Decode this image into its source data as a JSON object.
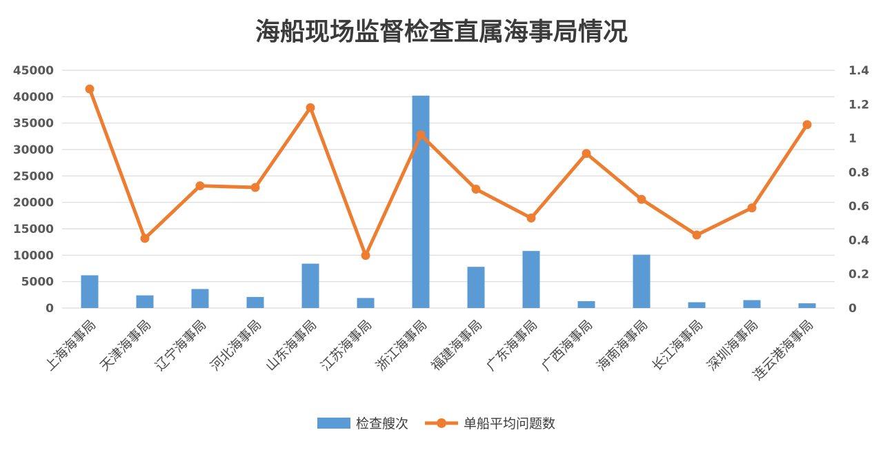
{
  "chart_data": {
    "type": "bar",
    "title": "海船现场监督检查直属海事局情况",
    "categories": [
      "上海海事局",
      "天津海事局",
      "辽宁海事局",
      "河北海事局",
      "山东海事局",
      "江苏海事局",
      "浙江海事局",
      "福建海事局",
      "广东海事局",
      "广西海事局",
      "海南海事局",
      "长江海事局",
      "深圳海事局",
      "连云港海事局"
    ],
    "series": [
      {
        "name": "检查艘次",
        "type": "bar",
        "axis": "left",
        "color": "#5b9bd5",
        "values": [
          6200,
          2400,
          3600,
          2100,
          8400,
          1900,
          40200,
          7800,
          10800,
          1300,
          10100,
          1100,
          1500,
          900
        ]
      },
      {
        "name": "单船平均问题数",
        "type": "line",
        "axis": "right",
        "color": "#ed7d31",
        "values": [
          1.29,
          0.41,
          0.72,
          0.71,
          1.18,
          0.31,
          1.02,
          0.7,
          0.53,
          0.91,
          0.64,
          0.43,
          0.59,
          1.08
        ]
      }
    ],
    "y_left": {
      "min": 0,
      "max": 45000,
      "ticks": [
        "0",
        "5000",
        "10000",
        "15000",
        "20000",
        "25000",
        "30000",
        "35000",
        "40000",
        "45000"
      ]
    },
    "y_right": {
      "min": 0,
      "max": 1.4,
      "ticks": [
        "0",
        "0.2",
        "0.4",
        "0.6",
        "0.8",
        "1",
        "1.2",
        "1.4"
      ]
    },
    "grid": true,
    "legend_position": "bottom"
  }
}
